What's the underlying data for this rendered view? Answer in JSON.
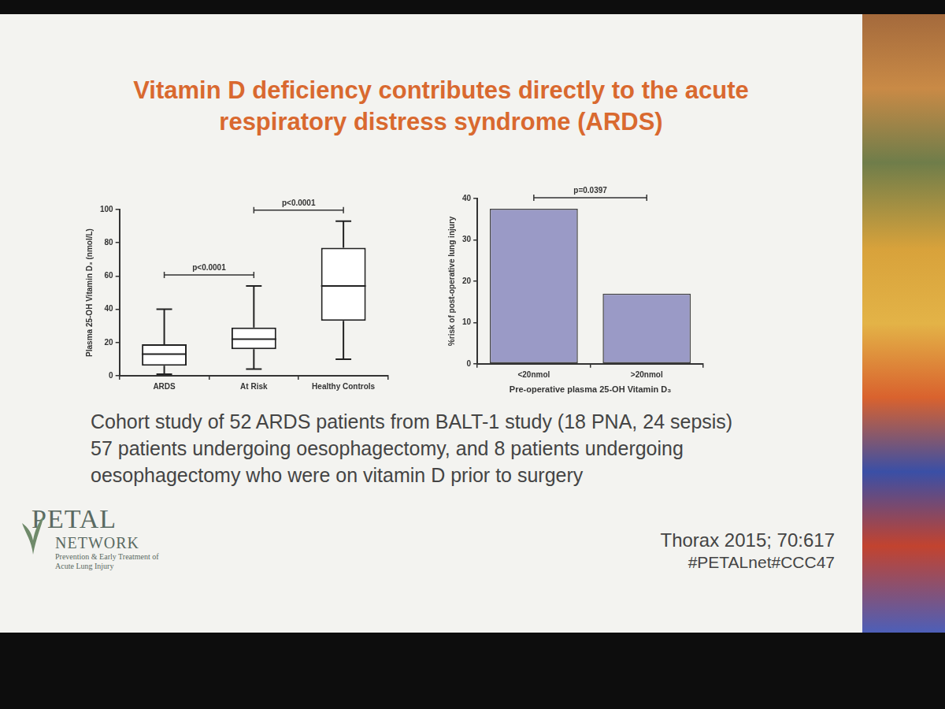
{
  "title": "Vitamin D deficiency contributes directly to the acute respiratory distress syndrome (ARDS)",
  "chart_data": [
    {
      "type": "box",
      "ylabel": "Plasma 25-OH Vitamin D₃ (nmol/L)",
      "categories": [
        "ARDS",
        "At Risk",
        "Healthy Controls"
      ],
      "boxes": [
        {
          "min": 1,
          "q1": 6,
          "median": 13,
          "q3": 19,
          "max": 40
        },
        {
          "min": 4,
          "q1": 16,
          "median": 22,
          "q3": 29,
          "max": 54
        },
        {
          "min": 10,
          "q1": 33,
          "median": 54,
          "q3": 77,
          "max": 93
        }
      ],
      "ylim": [
        0,
        100
      ],
      "yticks": [
        0,
        20,
        40,
        60,
        80,
        100
      ],
      "grid": false,
      "annotations": [
        {
          "from": "ARDS",
          "to": "At Risk",
          "text": "p<0.0001"
        },
        {
          "from": "At Risk",
          "to": "Healthy Controls",
          "text": "p<0.0001"
        }
      ]
    },
    {
      "type": "bar",
      "ylabel": "%risk of post-operative lung injury",
      "xlabel": "Pre-operative plasma 25-OH Vitamin D₃",
      "categories": [
        "<20nmol",
        ">20nmol"
      ],
      "values": [
        37.5,
        17
      ],
      "color": "#9a9ac6",
      "ylim": [
        0,
        40
      ],
      "yticks": [
        0,
        10,
        20,
        30,
        40
      ],
      "grid": false,
      "annotations": [
        {
          "from": "<20nmol",
          "to": ">20nmol",
          "text": "p=0.0397"
        }
      ]
    }
  ],
  "body": [
    "Cohort study of 52 ARDS patients from BALT-1 study (18 PNA, 24 sepsis)",
    "57 patients undergoing oesophagectomy, and 8 patients undergoing",
    "oesophagectomy who were on vitamin D prior to surgery"
  ],
  "logo": {
    "name": "PETAL",
    "subname": "NETWORK",
    "tagline": "Prevention & Early Treatment of Acute Lung Injury"
  },
  "citation": "Thorax 2015; 70:617",
  "hashtags": "#PETALnet#CCC47"
}
